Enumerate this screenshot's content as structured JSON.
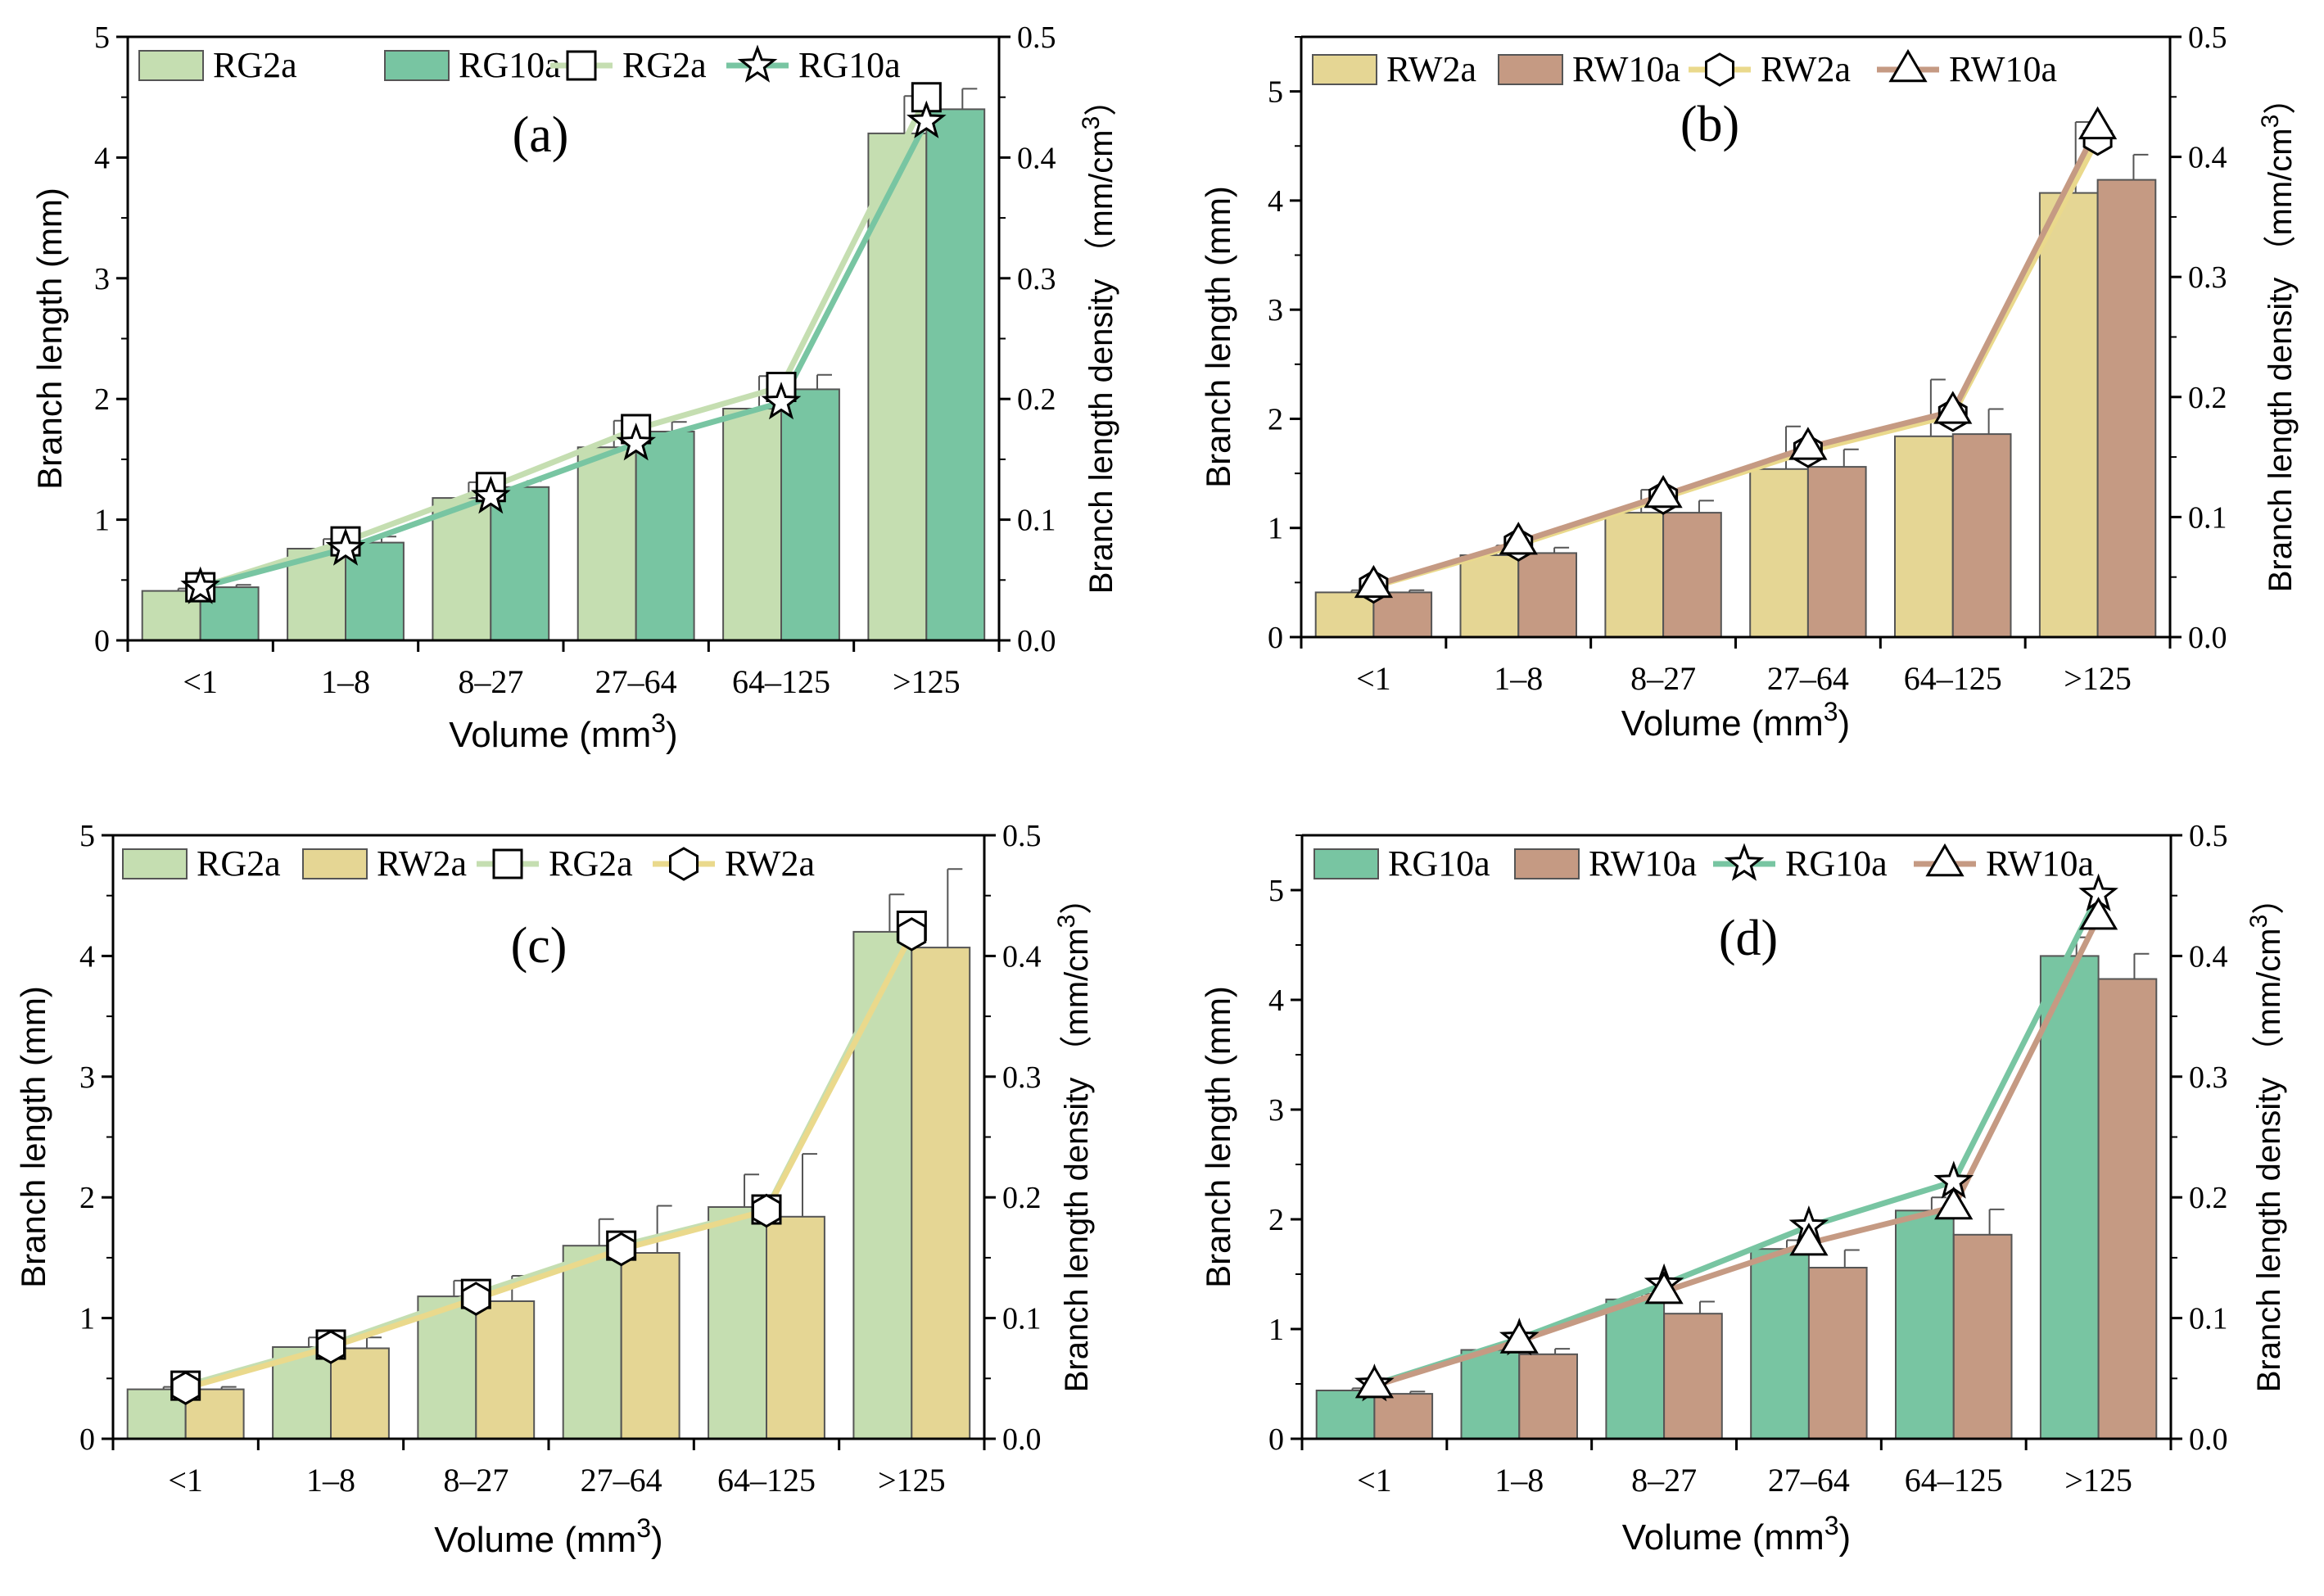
{
  "figure": {
    "xlabel_prefix": "Volume (mm",
    "xlabel_sup": "3",
    "xlabel_suffix": ")",
    "ylabel_left": "Branch length (mm)",
    "ylabel_right_prefix": "Branch length density （mm/cm",
    "ylabel_right_sup": "3",
    "ylabel_right_suffix": "）"
  },
  "colors": {
    "RG2a": "#c5deb1",
    "RG10a": "#78c5a2",
    "RW2a": "#e5d694",
    "RW10a": "#c59a83",
    "RG2a_line": "#c5deb1",
    "RG10a_line": "#78c5a2",
    "RW2a_line": "#ead98c",
    "RW10a_line": "#c59a83"
  },
  "chart_data": [
    {
      "panel": "(a)",
      "type": "bar",
      "categories": [
        "<1",
        "1–8",
        "8–27",
        "27–64",
        "64–125",
        ">125"
      ],
      "ylim": [
        0,
        5
      ],
      "yticks": [
        0,
        1,
        2,
        3,
        4,
        5
      ],
      "y2lim": [
        0,
        0.5
      ],
      "y2ticks": [
        "0.0",
        "0.1",
        "0.2",
        "0.3",
        "0.4",
        "0.5"
      ],
      "series": [
        {
          "name": "RG2a",
          "color": "#c5deb1",
          "values": [
            0.41,
            0.76,
            1.18,
            1.6,
            1.92,
            4.2
          ],
          "errors": [
            0.02,
            0.08,
            0.13,
            0.22,
            0.27,
            0.31
          ]
        },
        {
          "name": "RG10a",
          "color": "#78c5a2",
          "values": [
            0.44,
            0.81,
            1.27,
            1.73,
            2.08,
            4.4
          ],
          "errors": [
            0.02,
            0.05,
            0.05,
            0.08,
            0.12,
            0.17
          ]
        }
      ],
      "lines": [
        {
          "name": "RG2a",
          "color": "#c5deb1",
          "marker": "square",
          "values": [
            0.044,
            0.082,
            0.127,
            0.175,
            0.21,
            0.45
          ]
        },
        {
          "name": "RG10a",
          "color": "#78c5a2",
          "marker": "star",
          "values": [
            0.044,
            0.076,
            0.119,
            0.163,
            0.197,
            0.43
          ]
        }
      ],
      "legend": [
        "RG2a",
        "RG10a",
        "RG2a",
        "RG10a"
      ]
    },
    {
      "panel": "(b)",
      "type": "bar",
      "categories": [
        "<1",
        "1–8",
        "8–27",
        "27–64",
        "64–125",
        ">125"
      ],
      "ylim": [
        0,
        5.5
      ],
      "yticks": [
        0,
        1,
        2,
        3,
        4,
        5
      ],
      "y2lim": [
        0,
        0.5
      ],
      "y2ticks": [
        "0.0",
        "0.1",
        "0.2",
        "0.3",
        "0.4",
        "0.5"
      ],
      "series": [
        {
          "name": "RW2a",
          "color": "#e5d694",
          "values": [
            0.41,
            0.75,
            1.14,
            1.54,
            1.84,
            4.07
          ],
          "errors": [
            0.02,
            0.09,
            0.21,
            0.39,
            0.52,
            0.65
          ]
        },
        {
          "name": "RW10a",
          "color": "#c59a83",
          "values": [
            0.41,
            0.77,
            1.14,
            1.56,
            1.86,
            4.19
          ],
          "errors": [
            0.02,
            0.05,
            0.11,
            0.16,
            0.23,
            0.23
          ]
        }
      ],
      "lines": [
        {
          "name": "RW2a",
          "color": "#ead98c",
          "marker": "hexagon",
          "values": [
            0.042,
            0.077,
            0.116,
            0.155,
            0.185,
            0.415
          ]
        },
        {
          "name": "RW10a",
          "color": "#c59a83",
          "marker": "triangle",
          "values": [
            0.043,
            0.079,
            0.118,
            0.158,
            0.188,
            0.425
          ]
        }
      ],
      "legend": [
        "RW2a",
        "RW10a",
        "RW2a",
        "RW10a"
      ]
    },
    {
      "panel": "(c)",
      "type": "bar",
      "categories": [
        "<1",
        "1–8",
        "8–27",
        "27–64",
        "64–125",
        ">125"
      ],
      "ylim": [
        0,
        5
      ],
      "yticks": [
        0,
        1,
        2,
        3,
        4,
        5
      ],
      "y2lim": [
        0,
        0.5
      ],
      "y2ticks": [
        "0.0",
        "0.1",
        "0.2",
        "0.3",
        "0.4",
        "0.5"
      ],
      "series": [
        {
          "name": "RG2a",
          "color": "#c5deb1",
          "values": [
            0.41,
            0.76,
            1.18,
            1.6,
            1.92,
            4.2
          ],
          "errors": [
            0.02,
            0.08,
            0.13,
            0.22,
            0.27,
            0.31
          ]
        },
        {
          "name": "RW2a",
          "color": "#e5d694",
          "values": [
            0.41,
            0.75,
            1.14,
            1.54,
            1.84,
            4.07
          ],
          "errors": [
            0.02,
            0.09,
            0.21,
            0.39,
            0.52,
            0.65
          ]
        }
      ],
      "lines": [
        {
          "name": "RG2a",
          "color": "#c5deb1",
          "marker": "square",
          "values": [
            0.044,
            0.078,
            0.12,
            0.16,
            0.19,
            0.425
          ]
        },
        {
          "name": "RW2a",
          "color": "#ead98c",
          "marker": "hexagon",
          "values": [
            0.042,
            0.076,
            0.116,
            0.157,
            0.189,
            0.418
          ]
        }
      ],
      "legend": [
        "RG2a",
        "RW2a",
        "RG2a",
        "RW2a"
      ]
    },
    {
      "panel": "(d)",
      "type": "bar",
      "categories": [
        "<1",
        "1–8",
        "8–27",
        "27–64",
        "64–125",
        ">125"
      ],
      "ylim": [
        0,
        5.5
      ],
      "yticks": [
        0,
        1,
        2,
        3,
        4,
        5
      ],
      "y2lim": [
        0,
        0.5
      ],
      "y2ticks": [
        "0.0",
        "0.1",
        "0.2",
        "0.3",
        "0.4",
        "0.5"
      ],
      "series": [
        {
          "name": "RG10a",
          "color": "#78c5a2",
          "values": [
            0.44,
            0.81,
            1.27,
            1.73,
            2.08,
            4.4
          ],
          "errors": [
            0.02,
            0.05,
            0.05,
            0.08,
            0.12,
            0.17
          ]
        },
        {
          "name": "RW10a",
          "color": "#c59a83",
          "values": [
            0.41,
            0.77,
            1.14,
            1.56,
            1.86,
            4.19
          ],
          "errors": [
            0.02,
            0.05,
            0.11,
            0.16,
            0.23,
            0.23
          ]
        }
      ],
      "lines": [
        {
          "name": "RG10a",
          "color": "#78c5a2",
          "marker": "star",
          "values": [
            0.045,
            0.083,
            0.128,
            0.176,
            0.213,
            0.451
          ]
        },
        {
          "name": "RW10a",
          "color": "#c59a83",
          "marker": "triangle",
          "values": [
            0.044,
            0.081,
            0.122,
            0.162,
            0.192,
            0.432
          ]
        }
      ],
      "legend": [
        "RG10a",
        "RW10a",
        "RG10a",
        "RW10a"
      ]
    }
  ]
}
